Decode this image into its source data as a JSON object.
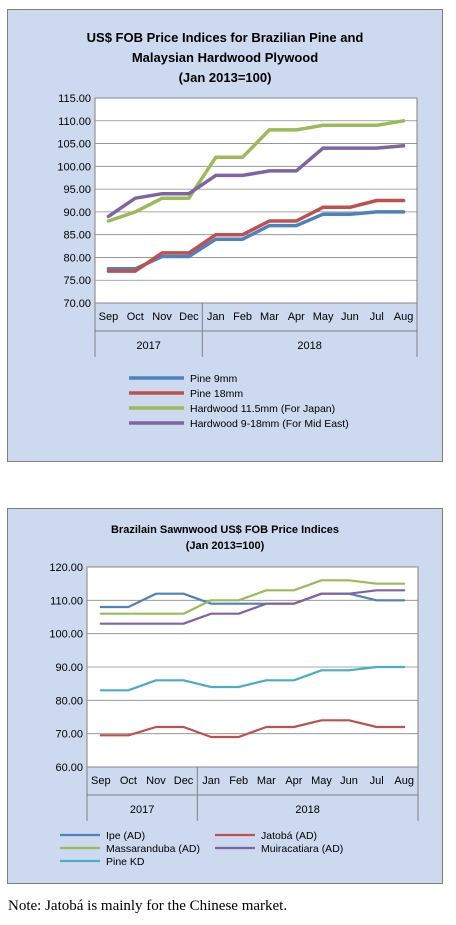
{
  "chart_data": [
    {
      "type": "line",
      "title_lines": [
        "US$ FOB Price Indices for Brazilian Pine and",
        "Malaysian Hardwood Plywood",
        "(Jan 2013=100)"
      ],
      "categories": [
        "Sep",
        "Oct",
        "Nov",
        "Dec",
        "Jan",
        "Feb",
        "Mar",
        "Apr",
        "May",
        "Jun",
        "Jul",
        "Aug"
      ],
      "year_groups": [
        {
          "label": "2017",
          "start": 0,
          "end": 3
        },
        {
          "label": "2018",
          "start": 4,
          "end": 11
        }
      ],
      "yticks": [
        "70.00",
        "75.00",
        "80.00",
        "85.00",
        "90.00",
        "95.00",
        "100.00",
        "105.00",
        "110.00",
        "115.00"
      ],
      "ylim": [
        70,
        115
      ],
      "legend_placement": "bottom",
      "step_line": true,
      "series": [
        {
          "name": "Pine 9mm",
          "color": "#4f81bd",
          "values": [
            77.5,
            77.5,
            80.2,
            80.2,
            84.0,
            84.0,
            87.0,
            87.0,
            89.5,
            89.5,
            90.0,
            90.0
          ]
        },
        {
          "name": "Pine 18mm",
          "color": "#c0504d",
          "values": [
            77.0,
            77.0,
            81.0,
            81.0,
            85.0,
            85.0,
            88.0,
            88.0,
            91.0,
            91.0,
            92.5,
            92.5
          ]
        },
        {
          "name": "Hardwood 11.5mm (For Japan)",
          "color": "#9bbb59",
          "values": [
            88.0,
            90.0,
            93.0,
            93.0,
            102.0,
            102.0,
            108.0,
            108.0,
            109.0,
            109.0,
            109.0,
            110.0
          ]
        },
        {
          "name": "Hardwood 9-18mm (For Mid East)",
          "color": "#8064a2",
          "values": [
            89.0,
            93.0,
            94.0,
            94.0,
            98.0,
            98.0,
            99.0,
            99.0,
            104.0,
            104.0,
            104.0,
            104.5
          ]
        }
      ]
    },
    {
      "type": "line",
      "title_lines": [
        "Brazilain Sawnwood US$ FOB Price Indices",
        "(Jan 2013=100)"
      ],
      "categories": [
        "Sep",
        "Oct",
        "Nov",
        "Dec",
        "Jan",
        "Feb",
        "Mar",
        "Apr",
        "May",
        "Jun",
        "Jul",
        "Aug"
      ],
      "year_groups": [
        {
          "label": "2017",
          "start": 0,
          "end": 3
        },
        {
          "label": "2018",
          "start": 4,
          "end": 11
        }
      ],
      "yticks": [
        "60.00",
        "70.00",
        "80.00",
        "90.00",
        "100.00",
        "110.00",
        "120.00"
      ],
      "ylim": [
        60,
        120
      ],
      "legend_placement": "bottom",
      "step_line": true,
      "series": [
        {
          "name": "Ipe (AD)",
          "color": "#4f81bd",
          "values": [
            108,
            108,
            112,
            112,
            109,
            109,
            109,
            109,
            112,
            112,
            110,
            110
          ]
        },
        {
          "name": "Jatobá (AD)",
          "color": "#c0504d",
          "values": [
            69.5,
            69.5,
            72,
            72,
            69,
            69,
            72,
            72,
            74,
            74,
            72,
            72
          ]
        },
        {
          "name": "Massaranduba (AD)",
          "color": "#9bbb59",
          "values": [
            106,
            106,
            106,
            106,
            110,
            110,
            113,
            113,
            116,
            116,
            115,
            115
          ]
        },
        {
          "name": "Muiracatiara (AD)",
          "color": "#8064a2",
          "values": [
            103,
            103,
            103,
            103,
            106,
            106,
            109,
            109,
            112,
            112,
            113,
            113
          ]
        },
        {
          "name": "Pine KD",
          "color": "#4bacc6",
          "values": [
            83,
            83,
            86,
            86,
            84,
            84,
            86,
            86,
            89,
            89,
            90,
            90
          ]
        }
      ]
    }
  ],
  "note": "Note: Jatobá is mainly for the Chinese market."
}
